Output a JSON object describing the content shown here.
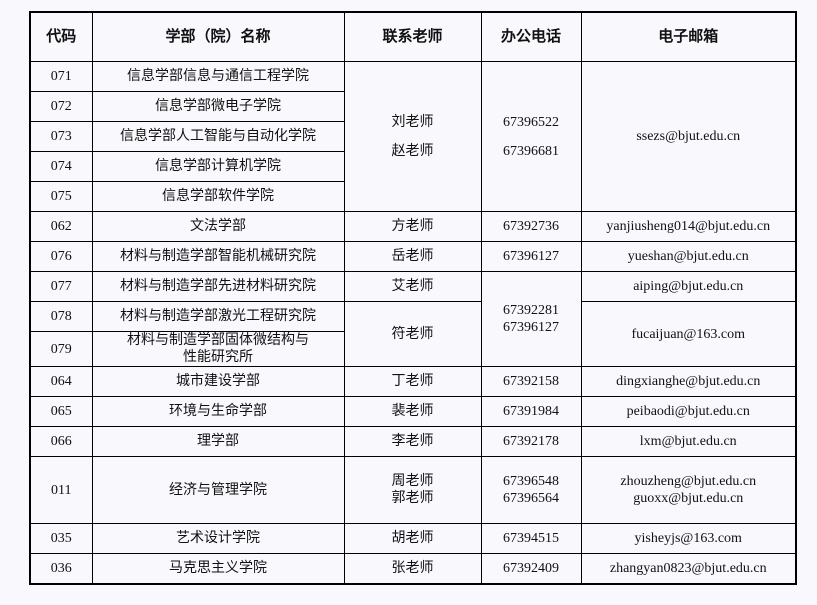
{
  "headers": [
    "代码",
    "学部（院）名称",
    "联系老师",
    "办公电话",
    "电子邮箱"
  ],
  "rows": [
    {
      "code": "071",
      "name": [
        "信息学部信息与通信工程学院"
      ],
      "teacher": {
        "text": [
          "刘老师",
          "赵老师"
        ],
        "span": 5,
        "gap": true
      },
      "phone": {
        "text": [
          "67396522",
          "67396681"
        ],
        "span": 5,
        "gap": true
      },
      "email": {
        "text": [
          "ssezs@bjut.edu.cn"
        ],
        "span": 5
      }
    },
    {
      "code": "072",
      "name": [
        "信息学部微电子学院"
      ]
    },
    {
      "code": "073",
      "name": [
        "信息学部人工智能与自动化学院"
      ]
    },
    {
      "code": "074",
      "name": [
        "信息学部计算机学院"
      ]
    },
    {
      "code": "075",
      "name": [
        "信息学部软件学院"
      ]
    },
    {
      "code": "062",
      "name": [
        "文法学部"
      ],
      "teacher": {
        "text": [
          "方老师"
        ]
      },
      "phone": {
        "text": [
          "67392736"
        ]
      },
      "email": {
        "text": [
          "yanjiusheng014@bjut.edu.cn"
        ]
      }
    },
    {
      "code": "076",
      "name": [
        "材料与制造学部智能机械研究院"
      ],
      "teacher": {
        "text": [
          "岳老师"
        ]
      },
      "phone": {
        "text": [
          "67396127"
        ]
      },
      "email": {
        "text": [
          "yueshan@bjut.edu.cn"
        ]
      }
    },
    {
      "code": "077",
      "name": [
        "材料与制造学部先进材料研究院"
      ],
      "teacher": {
        "text": [
          "艾老师"
        ]
      },
      "phone": {
        "text": [
          "67392281",
          "67396127"
        ],
        "span": 3
      },
      "email": {
        "text": [
          "aiping@bjut.edu.cn"
        ]
      }
    },
    {
      "code": "078",
      "name": [
        "材料与制造学部激光工程研究院"
      ],
      "teacher": {
        "text": [
          "符老师"
        ],
        "span": 2
      },
      "email": {
        "text": [
          "fucaijuan@163.com"
        ],
        "span": 2
      }
    },
    {
      "code": "079",
      "name": [
        "材料与制造学部固体微结构与",
        "性能研究所"
      ],
      "tall": true
    },
    {
      "code": "064",
      "name": [
        "城市建设学部"
      ],
      "teacher": {
        "text": [
          "丁老师"
        ]
      },
      "phone": {
        "text": [
          "67392158"
        ]
      },
      "email": {
        "text": [
          "dingxianghe@bjut.edu.cn"
        ]
      }
    },
    {
      "code": "065",
      "name": [
        "环境与生命学部"
      ],
      "teacher": {
        "text": [
          "裴老师"
        ]
      },
      "phone": {
        "text": [
          "67391984"
        ]
      },
      "email": {
        "text": [
          "peibaodi@bjut.edu.cn"
        ]
      }
    },
    {
      "code": "066",
      "name": [
        "理学部"
      ],
      "teacher": {
        "text": [
          "李老师"
        ]
      },
      "phone": {
        "text": [
          "67392178"
        ]
      },
      "email": {
        "text": [
          "lxm@bjut.edu.cn"
        ]
      }
    },
    {
      "code": "011",
      "name": [
        "经济与管理学院"
      ],
      "teacher": {
        "text": [
          "周老师",
          "郭老师"
        ]
      },
      "phone": {
        "text": [
          "67396548",
          "67396564"
        ]
      },
      "email": {
        "text": [
          "zhouzheng@bjut.edu.cn",
          "guoxx@bjut.edu.cn"
        ]
      },
      "xtall": true
    },
    {
      "code": "035",
      "name": [
        "艺术设计学院"
      ],
      "teacher": {
        "text": [
          "胡老师"
        ]
      },
      "phone": {
        "text": [
          "67394515"
        ]
      },
      "email": {
        "text": [
          "yisheyjs@163.com"
        ]
      }
    },
    {
      "code": "036",
      "name": [
        "马克思主义学院"
      ],
      "teacher": {
        "text": [
          "张老师"
        ]
      },
      "phone": {
        "text": [
          "67392409"
        ]
      },
      "email": {
        "text": [
          "zhangyan0823@bjut.edu.cn"
        ]
      }
    }
  ]
}
